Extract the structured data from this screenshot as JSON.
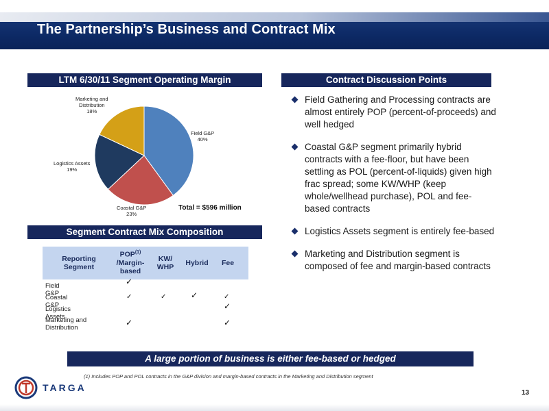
{
  "slide": {
    "title": "The Partnership’s Business and Contract Mix",
    "page_number": "13"
  },
  "sections": {
    "ltm_title": "LTM  6/30/11 Segment Operating Margin",
    "contract_title": "Contract Discussion Points",
    "mix_title": "Segment Contract Mix Composition"
  },
  "chart_data": {
    "type": "pie",
    "title": "LTM  6/30/11 Segment Operating Margin",
    "slices": [
      {
        "label_line1": "Field G&P",
        "label_line2": "",
        "percent_label": "40%",
        "value": 40,
        "color": "#4f81bd"
      },
      {
        "label_line1": "Coastal G&P",
        "label_line2": "",
        "percent_label": "23%",
        "value": 23,
        "color": "#c0504d"
      },
      {
        "label_line1": "Logistics Assets",
        "label_line2": "",
        "percent_label": "19%",
        "value": 19,
        "color": "#1f3a5f"
      },
      {
        "label_line1": "Marketing and",
        "label_line2": "Distribution",
        "percent_label": "18%",
        "value": 18,
        "color": "#d4a017"
      }
    ],
    "total_label": "Total = $596 million"
  },
  "bullets": [
    "Field Gathering and Processing contracts are almost entirely POP (percent-of-proceeds) and well hedged",
    "Coastal G&P segment primarily hybrid contracts with a fee-floor, but have been settling as POL (percent-of-liquids) given high frac spread; some KW/WHP (keep whole/wellhead purchase), POL and fee-based contracts",
    "Logistics Assets segment is entirely fee-based",
    "Marketing and Distribution segment is composed of fee and margin-based contracts"
  ],
  "mix_table": {
    "headers": {
      "segment_line1": "Reporting",
      "segment_line2": "Segment",
      "pop_line1": "POP",
      "pop_sup": "(1)",
      "pop_line2": "/Margin-",
      "pop_line3": "based",
      "kw_line1": "KW/",
      "kw_line2": "WHP",
      "hybrid": "Hybrid",
      "fee": "Fee"
    },
    "rows": [
      {
        "segment_line1": "Field G&P",
        "segment_line2": "",
        "pop": "✓",
        "kw": "",
        "hybrid": "",
        "fee": ""
      },
      {
        "segment_line1": "Coastal G&P",
        "segment_line2": "",
        "pop": "✓",
        "kw": "✓",
        "hybrid": "✓",
        "fee": "✓"
      },
      {
        "segment_line1": "Logistics Assets",
        "segment_line2": "",
        "pop": "",
        "kw": "",
        "hybrid": "",
        "fee": "✓"
      },
      {
        "segment_line1": "Marketing and",
        "segment_line2": "Distribution",
        "pop": "✓",
        "kw": "",
        "hybrid": "",
        "fee": "✓"
      }
    ]
  },
  "banner": "A large portion of business is either fee-based or hedged",
  "footnote": "(1)  Includes POP and POL contracts in the G&P division and margin-based contracts in the Marketing and Distribution segment",
  "logo": {
    "text": "TARGA",
    "icon": "targa-logo-icon"
  }
}
